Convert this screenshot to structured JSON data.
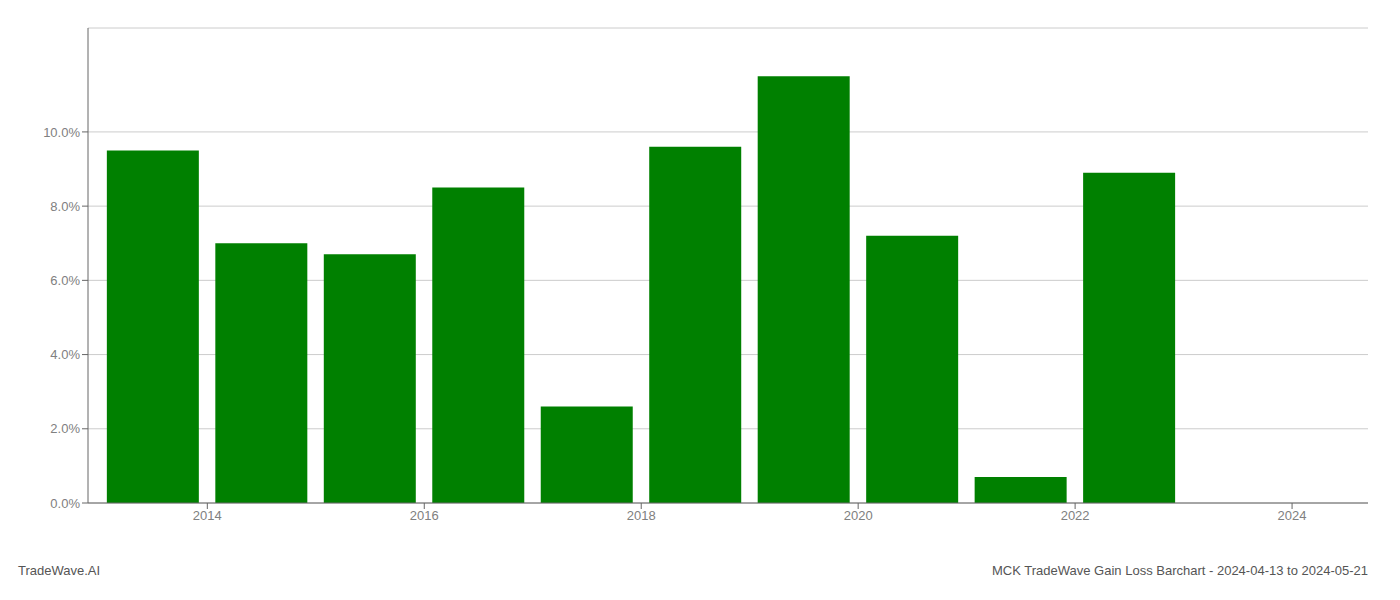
{
  "chart_data": {
    "type": "bar",
    "title": "MCK TradeWave Gain Loss Barchart - 2024-04-13 to 2024-05-21",
    "annotations": [
      "TradeWave.AI"
    ],
    "x": [
      2013,
      2014,
      2015,
      2016,
      2017,
      2018,
      2019,
      2020,
      2021,
      2022,
      2023
    ],
    "values": [
      0.095,
      0.07,
      0.067,
      0.085,
      0.026,
      0.096,
      0.115,
      0.072,
      0.007,
      0.089,
      0.0
    ],
    "color": "#008000",
    "xlim": [
      2012.4,
      2024.2
    ],
    "xticks": [
      {
        "value": 2013.5,
        "label": "2014"
      },
      {
        "value": 2015.5,
        "label": "2016"
      },
      {
        "value": 2017.5,
        "label": "2018"
      },
      {
        "value": 2019.5,
        "label": "2020"
      },
      {
        "value": 2021.5,
        "label": "2022"
      },
      {
        "value": 2023.5,
        "label": "2024"
      }
    ],
    "ylim": [
      0,
      0.128
    ],
    "yticks": [
      {
        "value": 0.0,
        "label": "0.0%"
      },
      {
        "value": 0.02,
        "label": "2.0%"
      },
      {
        "value": 0.04,
        "label": "4.0%"
      },
      {
        "value": 0.06,
        "label": "6.0%"
      },
      {
        "value": 0.08,
        "label": "8.0%"
      },
      {
        "value": 0.1,
        "label": "10.0%"
      }
    ],
    "grid": true
  }
}
